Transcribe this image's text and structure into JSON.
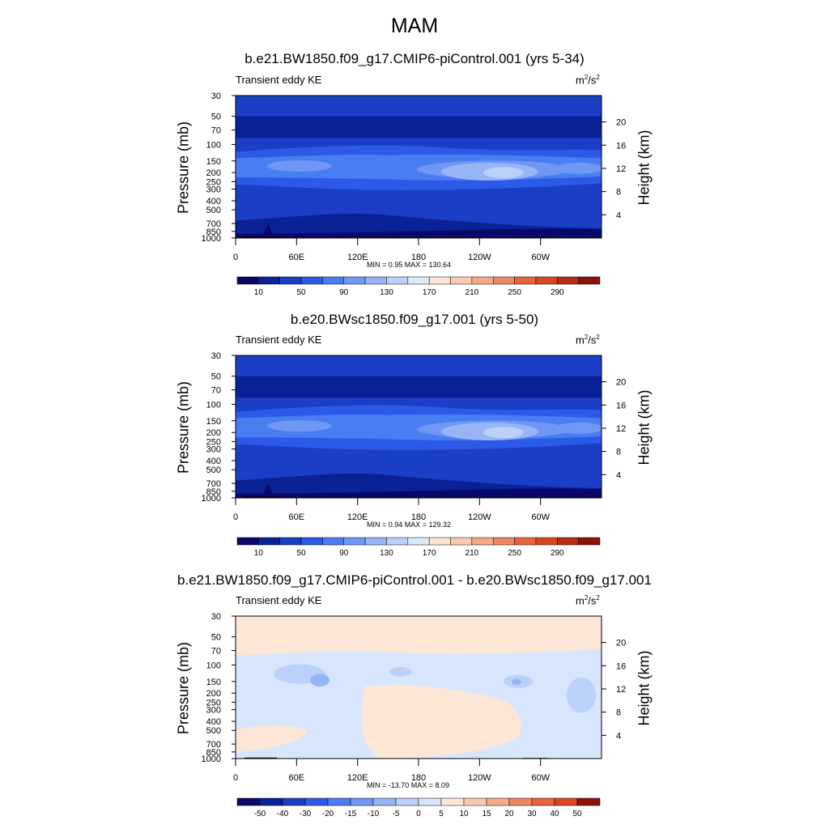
{
  "figure": {
    "title": "MAM"
  },
  "chart_data": [
    {
      "type": "heatmap",
      "title": "b.e21.BW1850.f09_g17.CMIP6-piControl.001 (yrs 5-34)",
      "variable": "Transient eddy KE",
      "units_base": "m",
      "units_exp": "2",
      "units_sep": "/s",
      "units_exp2": "2",
      "ylabel": "Pressure (mb)",
      "ylabel_right": "Height (km)",
      "x_ticks": [
        "0",
        "60E",
        "120E",
        "180",
        "120W",
        "60W"
      ],
      "x_range": [
        0,
        360
      ],
      "y_ticks": [
        "30",
        "50",
        "70",
        "100",
        "150",
        "200",
        "250",
        "300",
        "400",
        "500",
        "700",
        "850",
        "1000"
      ],
      "y_range_mb": [
        1000,
        30
      ],
      "height_ticks": [
        "4",
        "8",
        "12",
        "16",
        "20"
      ],
      "stats": "MIN =   0.95  MAX = 130.64",
      "min": 0.95,
      "max": 130.64,
      "colorbar_labels": [
        "10",
        "50",
        "90",
        "130",
        "170",
        "210",
        "250",
        "290"
      ],
      "colorbar_levels": [
        10,
        30,
        50,
        70,
        90,
        110,
        130,
        150,
        170,
        190,
        210,
        230,
        250,
        270,
        290
      ]
    },
    {
      "type": "heatmap",
      "title": "b.e20.BWsc1850.f09_g17.001 (yrs 5-50)",
      "variable": "Transient eddy KE",
      "units_base": "m",
      "units_exp": "2",
      "units_sep": "/s",
      "units_exp2": "2",
      "ylabel": "Pressure (mb)",
      "ylabel_right": "Height (km)",
      "x_ticks": [
        "0",
        "60E",
        "120E",
        "180",
        "120W",
        "60W"
      ],
      "x_range": [
        0,
        360
      ],
      "y_ticks": [
        "30",
        "50",
        "70",
        "100",
        "150",
        "200",
        "250",
        "300",
        "400",
        "500",
        "700",
        "850",
        "1000"
      ],
      "y_range_mb": [
        1000,
        30
      ],
      "height_ticks": [
        "4",
        "8",
        "12",
        "16",
        "20"
      ],
      "stats": "MIN =   0.94  MAX = 129.32",
      "min": 0.94,
      "max": 129.32,
      "colorbar_labels": [
        "10",
        "50",
        "90",
        "130",
        "170",
        "210",
        "250",
        "290"
      ],
      "colorbar_levels": [
        10,
        30,
        50,
        70,
        90,
        110,
        130,
        150,
        170,
        190,
        210,
        230,
        250,
        270,
        290
      ]
    },
    {
      "type": "heatmap",
      "title": "b.e21.BW1850.f09_g17.CMIP6-piControl.001 - b.e20.BWsc1850.f09_g17.001",
      "variable": "Transient eddy KE",
      "units_base": "m",
      "units_exp": "2",
      "units_sep": "/s",
      "units_exp2": "2",
      "ylabel": "Pressure (mb)",
      "ylabel_right": "Height (km)",
      "x_ticks": [
        "0",
        "60E",
        "120E",
        "180",
        "120W",
        "60W"
      ],
      "x_range": [
        0,
        360
      ],
      "y_ticks": [
        "30",
        "50",
        "70",
        "100",
        "150",
        "200",
        "250",
        "300",
        "400",
        "500",
        "700",
        "850",
        "1000"
      ],
      "y_range_mb": [
        1000,
        30
      ],
      "height_ticks": [
        "4",
        "8",
        "12",
        "16",
        "20"
      ],
      "stats": "MIN = -13.70  MAX =   8.09",
      "min": -13.7,
      "max": 8.09,
      "colorbar_labels": [
        "-50",
        "-40",
        "-30",
        "-20",
        "-15",
        "-10",
        "-5",
        "0",
        "5",
        "10",
        "15",
        "20",
        "30",
        "40",
        "50"
      ],
      "colorbar_levels": [
        -50,
        -40,
        -30,
        -20,
        -15,
        -10,
        -5,
        0,
        5,
        10,
        15,
        20,
        30,
        40,
        50
      ]
    }
  ],
  "colors": {
    "abs_palette": [
      "#08086b",
      "#0b2296",
      "#1a3ec4",
      "#2c5ae6",
      "#4a7cf2",
      "#6f97f4",
      "#96b4f6",
      "#bcd1fa",
      "#dce9fd",
      "#fde3d4",
      "#f9c9b3",
      "#f4a98b",
      "#ee8662",
      "#e8633b",
      "#d9461f",
      "#b82c14",
      "#8a1208"
    ],
    "diff_palette": [
      "#08086b",
      "#0b2296",
      "#1a3ec4",
      "#2c5ae6",
      "#4a7cf2",
      "#6f97f4",
      "#96b4f6",
      "#bcd1fa",
      "#d7e6fc",
      "#fde6d6",
      "#f9c9b3",
      "#f4a98b",
      "#ee8662",
      "#e8633b",
      "#d9461f",
      "#8a1208"
    ],
    "topo": "#000000"
  }
}
